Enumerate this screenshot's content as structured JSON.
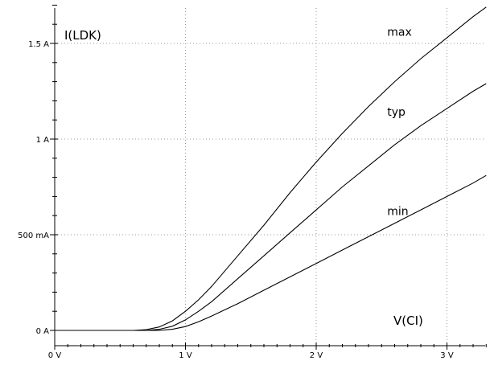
{
  "chart_data": {
    "type": "line",
    "xlabel": "V(CI)",
    "ylabel": "I(LDK)",
    "xlim": [
      0,
      3.3
    ],
    "ylim": [
      0,
      1.7
    ],
    "x_ticks": [
      {
        "value": 0,
        "label": "0 V"
      },
      {
        "value": 1,
        "label": "1 V"
      },
      {
        "value": 2,
        "label": "2 V"
      },
      {
        "value": 3,
        "label": "3 V"
      }
    ],
    "y_ticks": [
      {
        "value": 0,
        "label": "0 A"
      },
      {
        "value": 0.5,
        "label": "500 mA"
      },
      {
        "value": 1,
        "label": "1 A"
      },
      {
        "value": 1.5,
        "label": "1.5 A"
      }
    ],
    "grid": true,
    "series": [
      {
        "name": "max",
        "x": [
          0,
          0.6,
          0.7,
          0.8,
          0.9,
          1.0,
          1.1,
          1.2,
          1.4,
          1.6,
          1.8,
          2.0,
          2.2,
          2.4,
          2.6,
          2.8,
          3.0,
          3.2,
          3.3
        ],
        "y": [
          0,
          0,
          0.004,
          0.018,
          0.05,
          0.1,
          0.16,
          0.23,
          0.39,
          0.55,
          0.72,
          0.88,
          1.03,
          1.17,
          1.3,
          1.42,
          1.53,
          1.64,
          1.69
        ]
      },
      {
        "name": "typ",
        "x": [
          0,
          0.7,
          0.8,
          0.9,
          1.0,
          1.1,
          1.2,
          1.4,
          1.6,
          1.8,
          2.0,
          2.2,
          2.4,
          2.6,
          2.8,
          3.0,
          3.2,
          3.3
        ],
        "y": [
          0,
          0,
          0.006,
          0.022,
          0.055,
          0.1,
          0.15,
          0.27,
          0.39,
          0.51,
          0.63,
          0.75,
          0.86,
          0.97,
          1.07,
          1.16,
          1.25,
          1.29
        ]
      },
      {
        "name": "min",
        "x": [
          0,
          0.8,
          0.9,
          1.0,
          1.1,
          1.2,
          1.4,
          1.6,
          1.8,
          2.0,
          2.2,
          2.4,
          2.6,
          2.8,
          3.0,
          3.2,
          3.3
        ],
        "y": [
          0,
          0,
          0.006,
          0.02,
          0.045,
          0.075,
          0.14,
          0.21,
          0.28,
          0.35,
          0.42,
          0.49,
          0.56,
          0.63,
          0.7,
          0.77,
          0.81
        ]
      }
    ]
  }
}
